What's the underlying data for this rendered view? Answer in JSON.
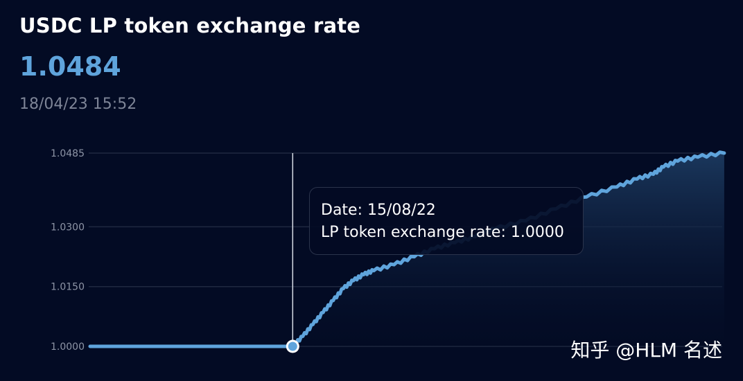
{
  "header": {
    "title": "USDC LP token exchange rate",
    "current_value": "1.0484",
    "timestamp": "18/04/23 15:52"
  },
  "tooltip": {
    "date_label": "Date:",
    "date_value": "15/08/22",
    "rate_label": "LP token exchange rate:",
    "rate_value": "1.0000"
  },
  "watermark": "知乎 @HLM 名述",
  "colors": {
    "background": "#030b24",
    "line": "#5fa4dc",
    "area_top": "#1c3a60",
    "grid": "#1f2940"
  },
  "chart_data": {
    "type": "area",
    "title": "USDC LP token exchange rate",
    "xlabel": "",
    "ylabel": "",
    "y_ticks": [
      "1.0000",
      "1.0150",
      "1.0300",
      "1.0485"
    ],
    "ylim": [
      1.0,
      1.0485
    ],
    "grid": true,
    "legend": "none",
    "highlighted_point": {
      "x_index": 100,
      "y": 1.0
    },
    "x_count": 313,
    "x": [
      0,
      50,
      100,
      105,
      110,
      115,
      120,
      125,
      130,
      135,
      140,
      150,
      160,
      170,
      180,
      190,
      200,
      215,
      230,
      245,
      260,
      270,
      278,
      283,
      290,
      300,
      313
    ],
    "y": [
      1.0,
      1.0,
      1.0,
      1.0025,
      1.0055,
      1.0085,
      1.0115,
      1.0145,
      1.0165,
      1.018,
      1.019,
      1.0205,
      1.0225,
      1.0245,
      1.026,
      1.0275,
      1.0295,
      1.0315,
      1.0345,
      1.0375,
      1.04,
      1.042,
      1.0432,
      1.045,
      1.0465,
      1.0475,
      1.0485
    ]
  }
}
